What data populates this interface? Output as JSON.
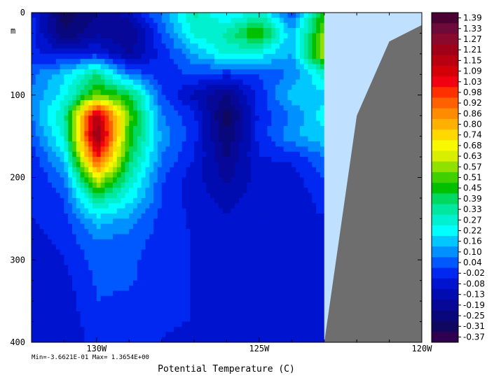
{
  "chart_data": {
    "type": "heatmap",
    "title": "Potential Temperature (C)",
    "stats_text": "Min=-3.6621E-01  Max= 1.3654E+00",
    "xlabel": "",
    "ylabel": "m",
    "x_ticks": [
      {
        "value": 130,
        "label": "130W"
      },
      {
        "value": 125,
        "label": "125W"
      },
      {
        "value": 120,
        "label": "120W"
      }
    ],
    "y_ticks": [
      {
        "value": 0,
        "label": "0"
      },
      {
        "value": 100,
        "label": "100"
      },
      {
        "value": 200,
        "label": "200"
      },
      {
        "value": 300,
        "label": "300"
      },
      {
        "value": 400,
        "label": "400"
      }
    ],
    "xlim": [
      132,
      120
    ],
    "ylim": [
      0,
      400
    ],
    "y_inverted": true,
    "levels": [
      "1.39",
      "1.33",
      "1.27",
      "1.21",
      "1.15",
      "1.09",
      "1.03",
      "0.98",
      "0.92",
      "0.86",
      "0.80",
      "0.74",
      "0.68",
      "0.63",
      "0.57",
      "0.51",
      "0.45",
      "0.39",
      "0.33",
      "0.27",
      "0.22",
      "0.16",
      "0.10",
      "0.04",
      "-0.02",
      "-0.08",
      "-0.13",
      "-0.19",
      "-0.25",
      "-0.31",
      "-0.37"
    ],
    "colorbar_colors": [
      "#4a0030",
      "#6e0a3a",
      "#8a0a2e",
      "#a00018",
      "#b80010",
      "#d40008",
      "#f00010",
      "#ff3000",
      "#ff6000",
      "#ff8c00",
      "#ffb000",
      "#ffd800",
      "#f8f800",
      "#d8f000",
      "#90e000",
      "#40d000",
      "#00c000",
      "#00d860",
      "#00e8a0",
      "#00f0d0",
      "#00ffff",
      "#00c8ff",
      "#0090ff",
      "#0058ff",
      "#0028f0",
      "#0014d0",
      "#000cb0",
      "#080898",
      "#08087c",
      "#100860",
      "#300050"
    ],
    "colormap_range": [
      -0.37,
      1.39
    ],
    "x_grid": [
      132,
      131,
      130,
      129,
      128,
      127,
      126,
      125,
      124,
      123
    ],
    "y_grid": [
      0,
      25,
      50,
      75,
      100,
      125,
      150,
      175,
      200,
      225,
      250,
      275,
      300,
      325,
      350,
      375,
      400
    ],
    "z": [
      [
        0.0,
        -0.3,
        -0.2,
        -0.1,
        0.12,
        0.35,
        0.2,
        0.3,
        0.04,
        0.5
      ],
      [
        0.0,
        -0.25,
        -0.15,
        -0.2,
        0.05,
        0.3,
        0.35,
        0.55,
        0.15,
        0.6
      ],
      [
        0.0,
        -0.05,
        0.0,
        -0.15,
        0.0,
        0.15,
        0.3,
        0.25,
        0.15,
        0.65
      ],
      [
        0.08,
        0.2,
        0.4,
        0.1,
        0.0,
        0.05,
        0.0,
        0.05,
        0.1,
        0.3
      ],
      [
        0.1,
        0.25,
        0.55,
        0.45,
        0.05,
        -0.1,
        -0.2,
        0.0,
        0.2,
        0.2
      ],
      [
        0.1,
        0.35,
        1.2,
        0.55,
        0.1,
        0.0,
        -0.3,
        0.0,
        0.1,
        0.25
      ],
      [
        0.05,
        0.3,
        1.3,
        0.5,
        0.15,
        0.0,
        -0.25,
        0.0,
        0.15,
        0.2
      ],
      [
        0.0,
        0.2,
        1.05,
        0.45,
        0.1,
        -0.02,
        -0.2,
        -0.02,
        0.0,
        0.1
      ],
      [
        -0.02,
        0.1,
        0.7,
        0.35,
        0.05,
        -0.05,
        -0.15,
        -0.05,
        -0.05,
        0.04
      ],
      [
        -0.02,
        0.04,
        0.4,
        0.25,
        0.04,
        -0.05,
        -0.1,
        -0.05,
        -0.05,
        0.0
      ],
      [
        -0.02,
        0.02,
        0.2,
        0.14,
        0.02,
        -0.03,
        -0.07,
        -0.03,
        -0.03,
        -0.02
      ],
      [
        -0.04,
        0.0,
        0.1,
        0.08,
        0.01,
        -0.02,
        -0.05,
        -0.03,
        -0.03,
        -0.03
      ],
      [
        -0.05,
        -0.02,
        0.07,
        0.06,
        0.0,
        -0.02,
        -0.04,
        -0.03,
        -0.04,
        -0.04
      ],
      [
        -0.05,
        -0.04,
        0.05,
        0.05,
        0.0,
        -0.02,
        -0.03,
        -0.03,
        -0.04,
        -0.05
      ],
      [
        -0.06,
        -0.05,
        0.04,
        0.03,
        0.0,
        -0.02,
        -0.03,
        -0.03,
        -0.04,
        -0.05
      ],
      [
        -0.06,
        -0.06,
        0.02,
        0.01,
        -0.01,
        -0.02,
        -0.03,
        -0.04,
        -0.05,
        -0.06
      ],
      [
        -0.07,
        -0.06,
        0.0,
        0.0,
        -0.02,
        -0.03,
        -0.04,
        -0.05,
        -0.05,
        -0.06
      ]
    ],
    "mask": {
      "description": "",
      "ocean_mask_color": "#c0e0ff",
      "land_color": "#6e6e6e",
      "mask_x_edge": 123,
      "land_boundary": [
        [
          123,
          400
        ],
        [
          122,
          125
        ],
        [
          121,
          35
        ],
        [
          120,
          15
        ],
        [
          120,
          0
        ]
      ]
    }
  }
}
